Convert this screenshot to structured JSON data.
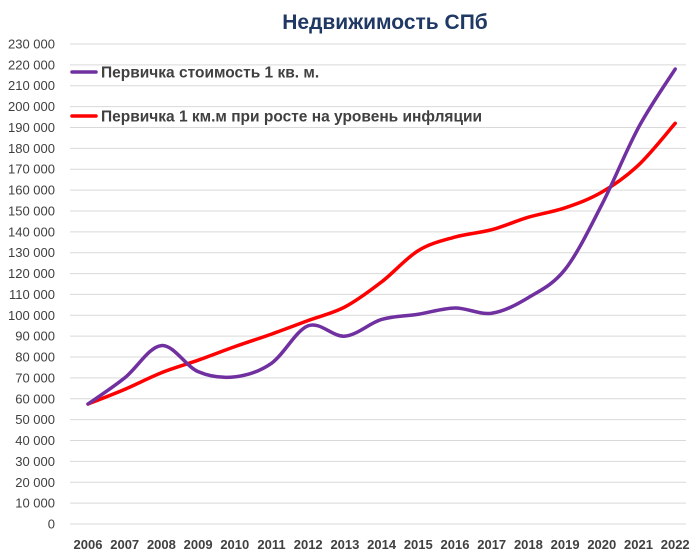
{
  "chart_data": {
    "type": "line",
    "title": "Недвижимость СПб",
    "title_color": "#1f3864",
    "xlabel": "",
    "ylabel": "",
    "ylim": [
      0,
      230000
    ],
    "y_ticks": [
      0,
      10000,
      20000,
      30000,
      40000,
      50000,
      60000,
      70000,
      80000,
      90000,
      100000,
      110000,
      120000,
      130000,
      140000,
      150000,
      160000,
      170000,
      180000,
      190000,
      200000,
      210000,
      220000,
      230000
    ],
    "y_tick_labels": [
      "0",
      "10 000",
      "20 000",
      "30 000",
      "40 000",
      "50 000",
      "60 000",
      "70 000",
      "80 000",
      "90 000",
      "100 000",
      "110 000",
      "120 000",
      "130 000",
      "140 000",
      "150 000",
      "160 000",
      "170 000",
      "180 000",
      "190 000",
      "200 000",
      "210 000",
      "220 000",
      "230 000"
    ],
    "categories": [
      "2006",
      "2007",
      "2008",
      "2009",
      "2010",
      "2011",
      "2012",
      "2013",
      "2014",
      "2015",
      "2016",
      "2017",
      "2018",
      "2019",
      "2020",
      "2021",
      "2022"
    ],
    "grid": true,
    "legend_position": "top-left",
    "series": [
      {
        "name": "Первичка стоимость 1 кв. м.",
        "color": "#7030a0",
        "values": [
          57500,
          70000,
          85500,
          73000,
          70500,
          77000,
          95000,
          90000,
          98000,
          100500,
          103500,
          101000,
          108500,
          122000,
          153000,
          190000,
          218000
        ]
      },
      {
        "name": "Первичка 1 км.м при росте на уровень инфляции",
        "color": "#ff0000",
        "values": [
          57500,
          64500,
          72500,
          78500,
          85000,
          91000,
          97500,
          104000,
          116000,
          131000,
          137500,
          141000,
          147000,
          151500,
          159000,
          172000,
          192000
        ]
      }
    ]
  }
}
